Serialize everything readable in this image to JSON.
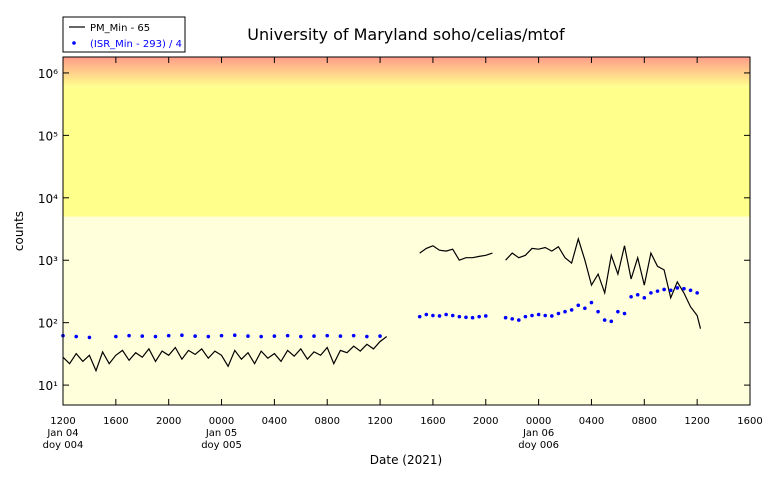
{
  "chart_data": {
    "type": "line",
    "title": "University of Maryland  soho/celias/mtof",
    "xlabel": "Date (2021)",
    "ylabel": "counts",
    "log_y": true,
    "legend": "upper left",
    "xlim": [
      "2021-01-04 12:00",
      "2021-01-06 16:00"
    ],
    "xticks": [
      {
        "value": "2021-01-04 12:00",
        "label": "1200\nJan 04\ndoy 004"
      },
      {
        "value": "2021-01-04 16:00",
        "label": "1600"
      },
      {
        "value": "2021-01-04 20:00",
        "label": "2000"
      },
      {
        "value": "2021-01-05 00:00",
        "label": "0000\nJan 05\ndoy 005"
      },
      {
        "value": "2021-01-05 04:00",
        "label": "0400"
      },
      {
        "value": "2021-01-05 08:00",
        "label": "0800"
      },
      {
        "value": "2021-01-05 12:00",
        "label": "1200"
      },
      {
        "value": "2021-01-05 16:00",
        "label": "1600"
      },
      {
        "value": "2021-01-05 20:00",
        "label": "2000"
      },
      {
        "value": "2021-01-06 00:00",
        "label": "0000\nJan 06\ndoy 006"
      },
      {
        "value": "2021-01-06 04:00",
        "label": "0400"
      },
      {
        "value": "2021-01-06 08:00",
        "label": "0800"
      },
      {
        "value": "2021-01-06 12:00",
        "label": "1200"
      },
      {
        "value": "2021-01-06 16:00",
        "label": "1600"
      }
    ],
    "ylim": [
      4.8,
      1800000
    ],
    "yticks": [
      {
        "value": 10,
        "label": "10¹"
      },
      {
        "value": 100,
        "label": "10²"
      },
      {
        "value": 1000,
        "label": "10³"
      },
      {
        "value": 10000,
        "label": "10⁴"
      },
      {
        "value": 100000,
        "label": "10⁵"
      },
      {
        "value": 1000000,
        "label": "10⁶"
      }
    ],
    "bands": [
      {
        "from": 4.8,
        "to": 5000,
        "color": "#ffffdc"
      },
      {
        "from": 5000,
        "to": 600000,
        "color": "#ffff8c"
      },
      {
        "from": 600000,
        "to": 1800000,
        "color": "#ffff8c",
        "color_top": "#ff9c8a"
      }
    ],
    "series": [
      {
        "name": "PM_Min - 65",
        "color": "#000000",
        "style": "line",
        "x": [
          "2021-01-04 12:00",
          "2021-01-04 12:30",
          "2021-01-04 13:00",
          "2021-01-04 13:30",
          "2021-01-04 14:00",
          "2021-01-04 14:30",
          "2021-01-04 15:00",
          "2021-01-04 15:30",
          "2021-01-04 16:00",
          "2021-01-04 16:30",
          "2021-01-04 17:00",
          "2021-01-04 17:30",
          "2021-01-04 18:00",
          "2021-01-04 18:30",
          "2021-01-04 19:00",
          "2021-01-04 19:30",
          "2021-01-04 20:00",
          "2021-01-04 20:30",
          "2021-01-04 21:00",
          "2021-01-04 21:30",
          "2021-01-04 22:00",
          "2021-01-04 22:30",
          "2021-01-04 23:00",
          "2021-01-04 23:30",
          "2021-01-05 00:00",
          "2021-01-05 00:30",
          "2021-01-05 01:00",
          "2021-01-05 01:30",
          "2021-01-05 02:00",
          "2021-01-05 02:30",
          "2021-01-05 03:00",
          "2021-01-05 03:30",
          "2021-01-05 04:00",
          "2021-01-05 04:30",
          "2021-01-05 05:00",
          "2021-01-05 05:30",
          "2021-01-05 06:00",
          "2021-01-05 06:30",
          "2021-01-05 07:00",
          "2021-01-05 07:30",
          "2021-01-05 08:00",
          "2021-01-05 08:30",
          "2021-01-05 09:00",
          "2021-01-05 09:30",
          "2021-01-05 10:00",
          "2021-01-05 10:30",
          "2021-01-05 11:00",
          "2021-01-05 11:30",
          "2021-01-05 12:00",
          "2021-01-05 12:30",
          "2021-01-05 14:00",
          "2021-01-05 15:00",
          "2021-01-05 15:30",
          "2021-01-05 16:00",
          "2021-01-05 16:30",
          "2021-01-05 17:00",
          "2021-01-05 17:30",
          "2021-01-05 18:00",
          "2021-01-05 18:30",
          "2021-01-05 19:00",
          "2021-01-05 19:30",
          "2021-01-05 20:00",
          "2021-01-05 20:30",
          "2021-01-05 21:00",
          "2021-01-05 21:30",
          "2021-01-05 22:00",
          "2021-01-05 22:30",
          "2021-01-05 23:00",
          "2021-01-05 23:30",
          "2021-01-06 00:00",
          "2021-01-06 00:30",
          "2021-01-06 01:00",
          "2021-01-06 01:30",
          "2021-01-06 02:00",
          "2021-01-06 02:30",
          "2021-01-06 03:00",
          "2021-01-06 03:30",
          "2021-01-06 04:00",
          "2021-01-06 04:30",
          "2021-01-06 05:00",
          "2021-01-06 05:30",
          "2021-01-06 06:00",
          "2021-01-06 06:30",
          "2021-01-06 07:00",
          "2021-01-06 07:30",
          "2021-01-06 08:00",
          "2021-01-06 08:30",
          "2021-01-06 09:00",
          "2021-01-06 09:30",
          "2021-01-06 10:00",
          "2021-01-06 10:30",
          "2021-01-06 11:00",
          "2021-01-06 11:30",
          "2021-01-06 12:00",
          "2021-01-06 12:15"
        ],
        "values": [
          28,
          22,
          32,
          24,
          30,
          17,
          34,
          22,
          30,
          36,
          25,
          33,
          28,
          38,
          24,
          35,
          30,
          40,
          26,
          36,
          31,
          38,
          27,
          35,
          30,
          20,
          36,
          26,
          33,
          22,
          35,
          27,
          32,
          24,
          36,
          29,
          38,
          26,
          34,
          30,
          40,
          22,
          36,
          33,
          42,
          35,
          45,
          38,
          50,
          60,
          null,
          1300,
          1550,
          1700,
          1450,
          1400,
          1500,
          1000,
          1100,
          1100,
          1150,
          1200,
          1300,
          null,
          1000,
          1300,
          1100,
          1200,
          1550,
          1500,
          1600,
          1400,
          1650,
          1100,
          900,
          2200,
          1000,
          400,
          600,
          300,
          1200,
          600,
          1700,
          500,
          1100,
          400,
          1300,
          800,
          700,
          250,
          450,
          300,
          180,
          130,
          80
        ]
      },
      {
        "name": "(ISR_Min - 293) / 4",
        "color": "#0000ff",
        "style": "dots",
        "x": [
          "2021-01-04 12:00",
          "2021-01-04 13:00",
          "2021-01-04 14:00",
          "2021-01-04 16:00",
          "2021-01-04 17:00",
          "2021-01-04 18:00",
          "2021-01-04 19:00",
          "2021-01-04 20:00",
          "2021-01-04 21:00",
          "2021-01-04 22:00",
          "2021-01-04 23:00",
          "2021-01-05 00:00",
          "2021-01-05 01:00",
          "2021-01-05 02:00",
          "2021-01-05 03:00",
          "2021-01-05 04:00",
          "2021-01-05 05:00",
          "2021-01-05 06:00",
          "2021-01-05 07:00",
          "2021-01-05 08:00",
          "2021-01-05 09:00",
          "2021-01-05 10:00",
          "2021-01-05 11:00",
          "2021-01-05 12:00",
          "2021-01-05 15:00",
          "2021-01-05 15:30",
          "2021-01-05 16:00",
          "2021-01-05 16:30",
          "2021-01-05 17:00",
          "2021-01-05 17:30",
          "2021-01-05 18:00",
          "2021-01-05 18:30",
          "2021-01-05 19:00",
          "2021-01-05 19:30",
          "2021-01-05 20:00",
          "2021-01-05 21:30",
          "2021-01-05 22:00",
          "2021-01-05 22:30",
          "2021-01-05 23:00",
          "2021-01-05 23:30",
          "2021-01-06 00:00",
          "2021-01-06 00:30",
          "2021-01-06 01:00",
          "2021-01-06 01:30",
          "2021-01-06 02:00",
          "2021-01-06 02:30",
          "2021-01-06 03:00",
          "2021-01-06 03:30",
          "2021-01-06 04:00",
          "2021-01-06 04:30",
          "2021-01-06 05:00",
          "2021-01-06 05:30",
          "2021-01-06 06:00",
          "2021-01-06 06:30",
          "2021-01-06 07:00",
          "2021-01-06 07:30",
          "2021-01-06 08:00",
          "2021-01-06 08:30",
          "2021-01-06 09:00",
          "2021-01-06 09:30",
          "2021-01-06 10:00",
          "2021-01-06 10:30",
          "2021-01-06 11:00",
          "2021-01-06 11:30",
          "2021-01-06 12:00"
        ],
        "values": [
          62,
          60,
          58,
          60,
          62,
          61,
          60,
          62,
          63,
          61,
          60,
          62,
          63,
          61,
          60,
          61,
          62,
          60,
          61,
          62,
          61,
          62,
          60,
          61,
          125,
          135,
          130,
          128,
          135,
          130,
          125,
          122,
          120,
          125,
          128,
          120,
          115,
          110,
          125,
          130,
          135,
          130,
          128,
          140,
          150,
          160,
          190,
          170,
          210,
          150,
          110,
          105,
          150,
          140,
          260,
          280,
          250,
          300,
          320,
          340,
          330,
          360,
          350,
          330,
          300
        ]
      }
    ]
  }
}
